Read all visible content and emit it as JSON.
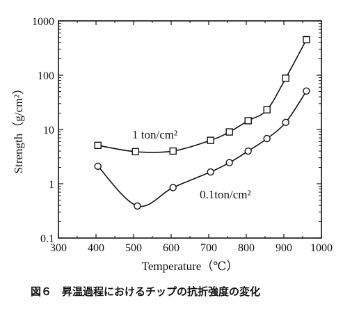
{
  "chart_data": {
    "type": "line",
    "xlabel": "Temperature（℃）",
    "ylabel": "Strength（g/cm²）",
    "xlim": [
      300,
      1000
    ],
    "ylim": [
      0.1,
      1000
    ],
    "yscale": "log",
    "grid": false,
    "x_ticks": [
      "300",
      "400",
      "500",
      "600",
      "700",
      "800",
      "900",
      "1000"
    ],
    "y_ticks": [
      "0.1",
      "1",
      "10",
      "100",
      "1000"
    ],
    "series": [
      {
        "name": "1 ton/cm²",
        "marker": "square",
        "x": [
          405,
          505,
          605,
          705,
          755,
          805,
          855,
          905,
          960
        ],
        "y": [
          5.1,
          3.9,
          4.0,
          6.3,
          9.0,
          14.5,
          23,
          88,
          450
        ]
      },
      {
        "name": "0.1ton/cm²",
        "marker": "circle",
        "x": [
          405,
          510,
          605,
          705,
          755,
          805,
          855,
          905,
          960
        ],
        "y": [
          2.1,
          0.39,
          0.85,
          1.65,
          2.45,
          4.0,
          6.8,
          13.5,
          51
        ]
      }
    ]
  },
  "caption": "図６　昇温過程におけるチップの抗折強度の変化"
}
